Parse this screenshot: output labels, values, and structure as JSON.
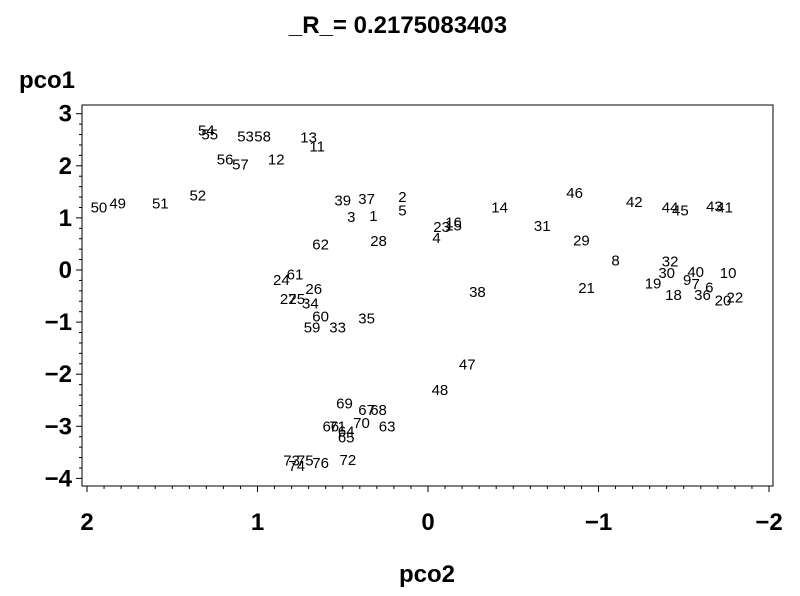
{
  "chart_data": {
    "type": "scatter",
    "title": "_R_= 0.2175083403",
    "xlabel": "pco2",
    "ylabel": "pco1",
    "xlim": [
      2,
      -2
    ],
    "ylim": [
      -4,
      3
    ],
    "xticks": [
      2,
      1,
      0,
      -1,
      -2
    ],
    "yticks": [
      3,
      2,
      1,
      0,
      -1,
      -2,
      -3,
      -4
    ],
    "x_tick_labels": [
      "2",
      "1",
      "0",
      "−1",
      "−2"
    ],
    "y_tick_labels": [
      "3",
      "2",
      "1",
      "0",
      "−1",
      "−2",
      "−3",
      "−4"
    ],
    "points": [
      {
        "label": "50",
        "x": 1.93,
        "y": 1.22
      },
      {
        "label": "49",
        "x": 1.82,
        "y": 1.3
      },
      {
        "label": "51",
        "x": 1.57,
        "y": 1.3
      },
      {
        "label": "52",
        "x": 1.35,
        "y": 1.45
      },
      {
        "label": "54",
        "x": 1.3,
        "y": 2.7
      },
      {
        "label": "55",
        "x": 1.28,
        "y": 2.62
      },
      {
        "label": "53",
        "x": 1.07,
        "y": 2.58
      },
      {
        "label": "58",
        "x": 0.97,
        "y": 2.58
      },
      {
        "label": "56",
        "x": 1.19,
        "y": 2.14
      },
      {
        "label": "57",
        "x": 1.1,
        "y": 2.04
      },
      {
        "label": "12",
        "x": 0.89,
        "y": 2.14
      },
      {
        "label": "13",
        "x": 0.7,
        "y": 2.56
      },
      {
        "label": "11",
        "x": 0.65,
        "y": 2.39
      },
      {
        "label": "39",
        "x": 0.5,
        "y": 1.35
      },
      {
        "label": "37",
        "x": 0.36,
        "y": 1.38
      },
      {
        "label": "3",
        "x": 0.45,
        "y": 1.04
      },
      {
        "label": "1",
        "x": 0.32,
        "y": 1.06
      },
      {
        "label": "2",
        "x": 0.15,
        "y": 1.42
      },
      {
        "label": "5",
        "x": 0.15,
        "y": 1.16
      },
      {
        "label": "62",
        "x": 0.63,
        "y": 0.51
      },
      {
        "label": "28",
        "x": 0.29,
        "y": 0.58
      },
      {
        "label": "4",
        "x": -0.05,
        "y": 0.63
      },
      {
        "label": "23",
        "x": -0.08,
        "y": 0.84
      },
      {
        "label": "16",
        "x": -0.15,
        "y": 0.93
      },
      {
        "label": "15",
        "x": -0.15,
        "y": 0.87
      },
      {
        "label": "14",
        "x": -0.42,
        "y": 1.22
      },
      {
        "label": "31",
        "x": -0.67,
        "y": 0.86
      },
      {
        "label": "46",
        "x": -0.86,
        "y": 1.5
      },
      {
        "label": "29",
        "x": -0.9,
        "y": 0.59
      },
      {
        "label": "42",
        "x": -1.21,
        "y": 1.32
      },
      {
        "label": "44",
        "x": -1.42,
        "y": 1.22
      },
      {
        "label": "45",
        "x": -1.48,
        "y": 1.16
      },
      {
        "label": "43",
        "x": -1.68,
        "y": 1.24
      },
      {
        "label": "41",
        "x": -1.74,
        "y": 1.22
      },
      {
        "label": "8",
        "x": -1.1,
        "y": 0.2
      },
      {
        "label": "32",
        "x": -1.42,
        "y": 0.18
      },
      {
        "label": "30",
        "x": -1.4,
        "y": -0.04
      },
      {
        "label": "19",
        "x": -1.32,
        "y": -0.24
      },
      {
        "label": "40",
        "x": -1.57,
        "y": -0.02
      },
      {
        "label": "9",
        "x": -1.52,
        "y": -0.17
      },
      {
        "label": "7",
        "x": -1.57,
        "y": -0.25
      },
      {
        "label": "6",
        "x": -1.65,
        "y": -0.32
      },
      {
        "label": "10",
        "x": -1.76,
        "y": -0.04
      },
      {
        "label": "18",
        "x": -1.44,
        "y": -0.46
      },
      {
        "label": "36",
        "x": -1.61,
        "y": -0.46
      },
      {
        "label": "20",
        "x": -1.73,
        "y": -0.57
      },
      {
        "label": "22",
        "x": -1.8,
        "y": -0.51
      },
      {
        "label": "21",
        "x": -0.93,
        "y": -0.33
      },
      {
        "label": "38",
        "x": -0.29,
        "y": -0.4
      },
      {
        "label": "61",
        "x": 0.78,
        "y": -0.07
      },
      {
        "label": "24",
        "x": 0.86,
        "y": -0.17
      },
      {
        "label": "26",
        "x": 0.67,
        "y": -0.35
      },
      {
        "label": "25",
        "x": 0.77,
        "y": -0.54
      },
      {
        "label": "27",
        "x": 0.82,
        "y": -0.54
      },
      {
        "label": "34",
        "x": 0.69,
        "y": -0.62
      },
      {
        "label": "60",
        "x": 0.63,
        "y": -0.87
      },
      {
        "label": "59",
        "x": 0.68,
        "y": -1.08
      },
      {
        "label": "33",
        "x": 0.53,
        "y": -1.08
      },
      {
        "label": "35",
        "x": 0.36,
        "y": -0.91
      },
      {
        "label": "47",
        "x": -0.23,
        "y": -1.79
      },
      {
        "label": "48",
        "x": -0.07,
        "y": -2.28
      },
      {
        "label": "69",
        "x": 0.49,
        "y": -2.54
      },
      {
        "label": "67",
        "x": 0.36,
        "y": -2.67
      },
      {
        "label": "68",
        "x": 0.29,
        "y": -2.67
      },
      {
        "label": "70",
        "x": 0.39,
        "y": -2.92
      },
      {
        "label": "63",
        "x": 0.24,
        "y": -2.98
      },
      {
        "label": "66",
        "x": 0.57,
        "y": -2.98
      },
      {
        "label": "71",
        "x": 0.53,
        "y": -2.98
      },
      {
        "label": "64",
        "x": 0.48,
        "y": -3.08
      },
      {
        "label": "65",
        "x": 0.48,
        "y": -3.2
      },
      {
        "label": "72",
        "x": 0.47,
        "y": -3.63
      },
      {
        "label": "73",
        "x": 0.8,
        "y": -3.64
      },
      {
        "label": "75",
        "x": 0.72,
        "y": -3.64
      },
      {
        "label": "74",
        "x": 0.77,
        "y": -3.74
      },
      {
        "label": "76",
        "x": 0.63,
        "y": -3.69
      }
    ]
  }
}
